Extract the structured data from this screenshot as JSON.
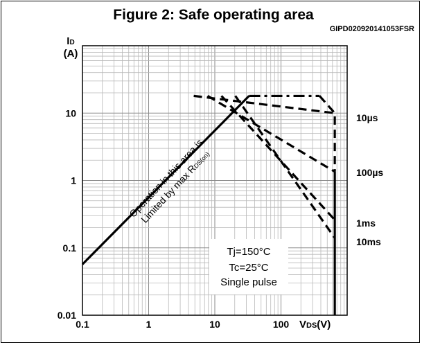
{
  "figure": {
    "title": "Figure 2: Safe operating area",
    "code": "GIPD020920141053FSR"
  },
  "chart_data": {
    "type": "line",
    "title": "Figure 2: Safe operating area",
    "xscale": "log",
    "yscale": "log",
    "xlim": [
      0.1,
      1000
    ],
    "ylim": [
      0.01,
      100
    ],
    "grid": true,
    "xlabel": {
      "main": "V",
      "sub": "DS",
      "unit": "(V)"
    },
    "ylabel": {
      "main": "I",
      "sub": "D",
      "unit": "(A)"
    },
    "xticks": [
      {
        "value": 0.1,
        "label": "0.1"
      },
      {
        "value": 1,
        "label": "1"
      },
      {
        "value": 10,
        "label": "10"
      },
      {
        "value": 100,
        "label": "100"
      }
    ],
    "yticks": [
      {
        "value": 0.01,
        "label": "0.01"
      },
      {
        "value": 0.1,
        "label": "0.1"
      },
      {
        "value": 1,
        "label": "1"
      },
      {
        "value": 10,
        "label": "10"
      }
    ],
    "rdson_line": {
      "x": [
        0.1,
        33
      ],
      "y": [
        0.057,
        18
      ]
    },
    "current_limit": 18,
    "vds_limit": 650,
    "series": [
      {
        "name": "10µs",
        "style": "dashed",
        "x": [
          4.8,
          650,
          650
        ],
        "y": [
          18,
          10,
          0.01
        ]
      },
      {
        "name": "100µs",
        "style": "dashed",
        "x": [
          4.8,
          650,
          650
        ],
        "y": [
          18,
          1.35,
          0.01
        ]
      },
      {
        "name": "1ms",
        "style": "dashed",
        "x": [
          4.8,
          650,
          650
        ],
        "y": [
          18,
          0.26,
          0.01
        ]
      },
      {
        "name": "10ms",
        "style": "dashed",
        "x": [
          4.8,
          650,
          650
        ],
        "y": [
          18,
          0.14,
          0.01
        ]
      }
    ],
    "limited_region_annotation": {
      "line1": "Operation in this area is",
      "line2": "Limited by max R",
      "sub": "DS(on)"
    },
    "conditions": [
      "Tj=150°C",
      "Tc=25°C",
      "Single pulse"
    ]
  }
}
